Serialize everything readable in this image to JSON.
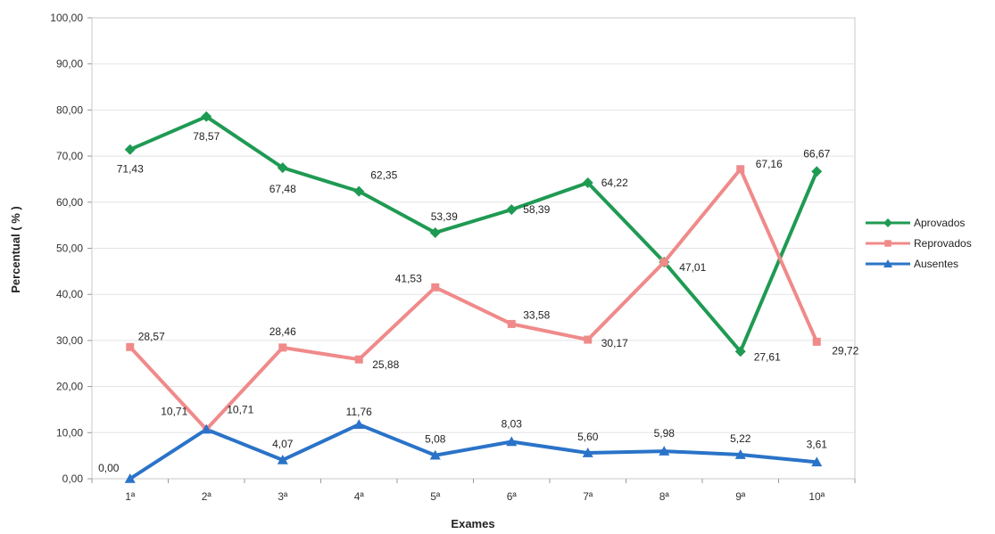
{
  "chart_data": {
    "type": "line",
    "categories": [
      "1ª",
      "2ª",
      "3ª",
      "4ª",
      "5ª",
      "6ª",
      "7ª",
      "8ª",
      "9ª",
      "10ª"
    ],
    "xlabel": "Exames",
    "ylabel": "Percentual ( % )",
    "ylim": [
      0,
      100
    ],
    "yticks": [
      "0,00",
      "10,00",
      "20,00",
      "30,00",
      "40,00",
      "50,00",
      "60,00",
      "70,00",
      "80,00",
      "90,00",
      "100,00"
    ],
    "grid": true,
    "legend_position": "right",
    "series": [
      {
        "name": "Aprovados",
        "color": "#1f9a53",
        "marker": "diamond",
        "values": [
          71.43,
          78.57,
          67.48,
          62.35,
          53.39,
          58.39,
          64.22,
          47.01,
          27.61,
          66.67
        ],
        "labels": [
          "71,43",
          "78,57",
          "67,48",
          "62,35",
          "53,39",
          "58,39",
          "64,22",
          "",
          "27,61",
          "66,67"
        ]
      },
      {
        "name": "Reprovados",
        "color": "#f08a8a",
        "marker": "square",
        "values": [
          28.57,
          10.71,
          28.46,
          25.88,
          41.53,
          33.58,
          30.17,
          47.01,
          67.16,
          29.72
        ],
        "labels": [
          "28,57",
          "10,71",
          "28,46",
          "25,88",
          "41,53",
          "33,58",
          "30,17",
          "47,01",
          "67,16",
          "29,72"
        ]
      },
      {
        "name": "Ausentes",
        "color": "#2a73c8",
        "marker": "triangle",
        "values": [
          0.0,
          10.71,
          4.07,
          11.76,
          5.08,
          8.03,
          5.6,
          5.98,
          5.22,
          3.61
        ],
        "labels": [
          "0,00",
          "10,71",
          "4,07",
          "11,76",
          "5,08",
          "8,03",
          "5,60",
          "5,98",
          "5,22",
          "3,61"
        ]
      }
    ]
  }
}
